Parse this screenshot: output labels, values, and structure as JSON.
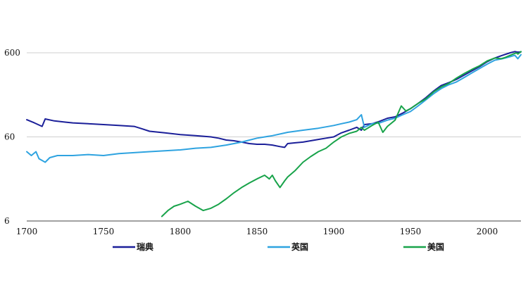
{
  "chart_data": {
    "type": "line",
    "y_scale": "log",
    "xlim": [
      1700,
      2022
    ],
    "ylim": [
      6,
      600
    ],
    "x_ticks": [
      "1700",
      "1750",
      "1800",
      "1850",
      "1900",
      "1950",
      "2000"
    ],
    "y_ticks": [
      "6",
      "60",
      "600"
    ],
    "grid": "horizontal",
    "legend_position": "bottom",
    "series": [
      {
        "name": "瑞典",
        "color": "#1b1f99",
        "points": [
          [
            1700,
            96
          ],
          [
            1705,
            88
          ],
          [
            1710,
            80
          ],
          [
            1712,
            98
          ],
          [
            1718,
            93
          ],
          [
            1725,
            90
          ],
          [
            1730,
            88
          ],
          [
            1740,
            86
          ],
          [
            1750,
            84
          ],
          [
            1760,
            82
          ],
          [
            1770,
            80
          ],
          [
            1775,
            75
          ],
          [
            1780,
            70
          ],
          [
            1790,
            67
          ],
          [
            1800,
            64
          ],
          [
            1810,
            62
          ],
          [
            1820,
            60
          ],
          [
            1825,
            58
          ],
          [
            1830,
            55
          ],
          [
            1835,
            54
          ],
          [
            1840,
            52
          ],
          [
            1845,
            50
          ],
          [
            1850,
            49
          ],
          [
            1855,
            49
          ],
          [
            1860,
            48
          ],
          [
            1865,
            46
          ],
          [
            1868,
            45
          ],
          [
            1870,
            50
          ],
          [
            1875,
            51
          ],
          [
            1880,
            52
          ],
          [
            1885,
            54
          ],
          [
            1890,
            56
          ],
          [
            1895,
            58
          ],
          [
            1900,
            60
          ],
          [
            1905,
            67
          ],
          [
            1910,
            72
          ],
          [
            1915,
            78
          ],
          [
            1918,
            72
          ],
          [
            1920,
            84
          ],
          [
            1925,
            86
          ],
          [
            1930,
            92
          ],
          [
            1935,
            100
          ],
          [
            1940,
            104
          ],
          [
            1945,
            115
          ],
          [
            1950,
            130
          ],
          [
            1955,
            150
          ],
          [
            1960,
            175
          ],
          [
            1965,
            210
          ],
          [
            1970,
            245
          ],
          [
            1975,
            265
          ],
          [
            1980,
            290
          ],
          [
            1985,
            325
          ],
          [
            1990,
            365
          ],
          [
            1995,
            410
          ],
          [
            2000,
            470
          ],
          [
            2005,
            520
          ],
          [
            2010,
            560
          ],
          [
            2015,
            600
          ],
          [
            2018,
            620
          ],
          [
            2020,
            610
          ],
          [
            2022,
            615
          ]
        ]
      },
      {
        "name": "英国",
        "color": "#2ea3e0",
        "points": [
          [
            1700,
            40
          ],
          [
            1703,
            36
          ],
          [
            1706,
            40
          ],
          [
            1708,
            33
          ],
          [
            1712,
            30
          ],
          [
            1715,
            34
          ],
          [
            1720,
            36
          ],
          [
            1730,
            36
          ],
          [
            1740,
            37
          ],
          [
            1750,
            36
          ],
          [
            1760,
            38
          ],
          [
            1770,
            39
          ],
          [
            1780,
            40
          ],
          [
            1790,
            41
          ],
          [
            1800,
            42
          ],
          [
            1810,
            44
          ],
          [
            1820,
            45
          ],
          [
            1830,
            48
          ],
          [
            1840,
            52
          ],
          [
            1850,
            58
          ],
          [
            1860,
            62
          ],
          [
            1870,
            68
          ],
          [
            1880,
            72
          ],
          [
            1890,
            76
          ],
          [
            1900,
            82
          ],
          [
            1905,
            86
          ],
          [
            1910,
            90
          ],
          [
            1915,
            96
          ],
          [
            1918,
            110
          ],
          [
            1920,
            78
          ],
          [
            1925,
            86
          ],
          [
            1930,
            88
          ],
          [
            1935,
            95
          ],
          [
            1940,
            100
          ],
          [
            1945,
            110
          ],
          [
            1950,
            120
          ],
          [
            1955,
            140
          ],
          [
            1960,
            165
          ],
          [
            1965,
            195
          ],
          [
            1970,
            225
          ],
          [
            1975,
            250
          ],
          [
            1980,
            270
          ],
          [
            1985,
            305
          ],
          [
            1990,
            345
          ],
          [
            1995,
            390
          ],
          [
            2000,
            440
          ],
          [
            2005,
            490
          ],
          [
            2010,
            510
          ],
          [
            2015,
            540
          ],
          [
            2018,
            560
          ],
          [
            2020,
            510
          ],
          [
            2022,
            570
          ]
        ]
      },
      {
        "name": "美国",
        "color": "#18a34a",
        "points": [
          [
            1788,
            6.8
          ],
          [
            1792,
            8
          ],
          [
            1796,
            9
          ],
          [
            1800,
            9.5
          ],
          [
            1805,
            10.3
          ],
          [
            1810,
            9.0
          ],
          [
            1815,
            8.0
          ],
          [
            1820,
            8.5
          ],
          [
            1825,
            9.5
          ],
          [
            1830,
            11
          ],
          [
            1835,
            13
          ],
          [
            1840,
            15
          ],
          [
            1845,
            17
          ],
          [
            1850,
            19
          ],
          [
            1855,
            21
          ],
          [
            1858,
            19
          ],
          [
            1860,
            21
          ],
          [
            1862,
            18
          ],
          [
            1865,
            15
          ],
          [
            1868,
            18
          ],
          [
            1870,
            20
          ],
          [
            1875,
            24
          ],
          [
            1880,
            30
          ],
          [
            1885,
            35
          ],
          [
            1890,
            40
          ],
          [
            1895,
            44
          ],
          [
            1900,
            52
          ],
          [
            1905,
            60
          ],
          [
            1910,
            66
          ],
          [
            1915,
            70
          ],
          [
            1918,
            78
          ],
          [
            1920,
            72
          ],
          [
            1925,
            82
          ],
          [
            1929,
            90
          ],
          [
            1932,
            68
          ],
          [
            1935,
            80
          ],
          [
            1940,
            95
          ],
          [
            1944,
            140
          ],
          [
            1947,
            122
          ],
          [
            1950,
            130
          ],
          [
            1955,
            150
          ],
          [
            1960,
            170
          ],
          [
            1965,
            205
          ],
          [
            1970,
            235
          ],
          [
            1975,
            260
          ],
          [
            1980,
            300
          ],
          [
            1985,
            340
          ],
          [
            1990,
            380
          ],
          [
            1995,
            420
          ],
          [
            2000,
            480
          ],
          [
            2005,
            520
          ],
          [
            2009,
            510
          ],
          [
            2012,
            530
          ],
          [
            2015,
            560
          ],
          [
            2019,
            600
          ],
          [
            2020,
            580
          ],
          [
            2022,
            620
          ]
        ]
      }
    ]
  }
}
